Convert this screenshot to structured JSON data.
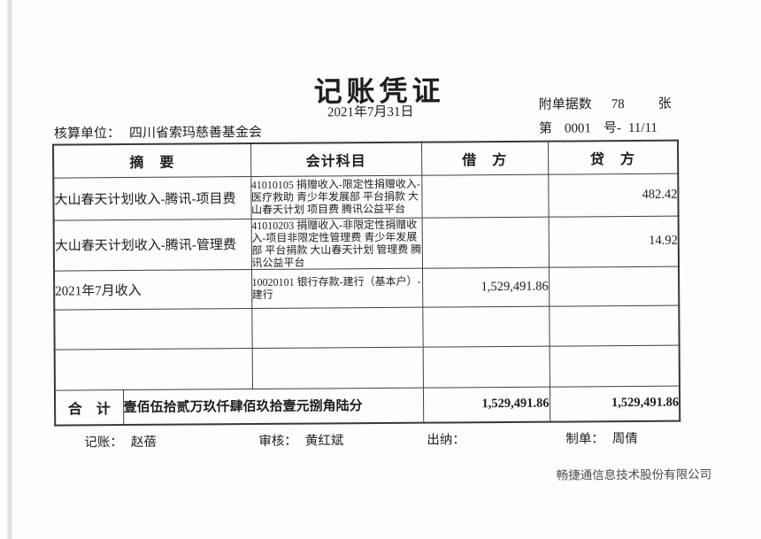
{
  "document": {
    "title": "记账凭证",
    "date": "2021年7月31日",
    "attachment_label": "附单据数",
    "attachment_count": "78",
    "attachment_unit": "张",
    "number_label": "第",
    "number": "0001",
    "number_suffix": "号-",
    "page": "11/11",
    "unit_label": "核算单位：",
    "unit_name": "四川省索玛慈善基金会"
  },
  "table": {
    "headers": [
      "摘　要",
      "会计科目",
      "借　方",
      "贷　方"
    ],
    "rows": [
      {
        "summary": "大山春天计划收入-腾讯-项目费",
        "account": "41010105 捐赠收入-限定性捐赠收入-医疗救助 青少年发展部 平台捐款 大山春天计划 项目费 腾讯公益平台",
        "debit": "",
        "credit": "482.42"
      },
      {
        "summary": "大山春天计划收入-腾讯-管理费",
        "account": "41010203 捐赠收入-非限定性捐赠收入-项目非限定性管理费 青少年发展部 平台捐款 大山春天计划 管理费 腾讯公益平台",
        "debit": "",
        "credit": "14.92"
      },
      {
        "summary": "2021年7月收入",
        "account": "10020101 银行存款-建行（基本户）-建行",
        "debit": "1,529,491.86",
        "credit": ""
      },
      {
        "summary": "",
        "account": "",
        "debit": "",
        "credit": ""
      },
      {
        "summary": "",
        "account": "",
        "debit": "",
        "credit": ""
      }
    ],
    "total": {
      "label": "合　计",
      "amount_in_words": "壹佰伍拾贰万玖仟肆佰玖拾壹元捌角陆分",
      "debit": "1,529,491.86",
      "credit": "1,529,491.86"
    }
  },
  "footer": {
    "bookkeeper_label": "记账：",
    "bookkeeper_name": "赵蓓",
    "reviewer_label": "审核：",
    "reviewer_name": "黄红斌",
    "cashier_label": "出纳：",
    "cashier_name": "",
    "preparer_label": "制单：",
    "preparer_name": "周倩",
    "vendor": "畅捷通信息技术股份有限公司"
  }
}
